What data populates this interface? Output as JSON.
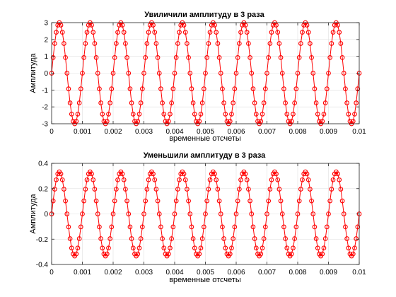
{
  "chart_data": [
    {
      "type": "line",
      "title": "Увиличили амплитуду в 3 раза",
      "xlabel": "временные отсчеты",
      "ylabel": "Амплитуда",
      "xlim": [
        0,
        0.01
      ],
      "ylim": [
        -3,
        3
      ],
      "x_ticks": [
        0,
        0.001,
        0.002,
        0.003,
        0.004,
        0.005,
        0.006,
        0.007,
        0.008,
        0.009,
        0.01
      ],
      "x_tick_labels": [
        "0",
        "0.001",
        "0.002",
        "0.003",
        "0.004",
        "0.005",
        "0.006",
        "0.007",
        "0.008",
        "0.009",
        "0.01"
      ],
      "y_ticks": [
        -3,
        -2,
        -1,
        0,
        1,
        2,
        3
      ],
      "y_tick_labels": [
        "-3",
        "-2",
        "-1",
        "0",
        "1",
        "2",
        "3"
      ],
      "grid": true,
      "series": [
        {
          "color": "#ff0000",
          "marker": "circle",
          "function": "sine",
          "amplitude": 3,
          "frequency_hz": 1000,
          "sample_rate_hz": 20000,
          "x_start": 0,
          "x_end": 0.01
        }
      ]
    },
    {
      "type": "line",
      "title": "Уменьшили амплитуду в 3 раза",
      "xlabel": "временные отсчеты",
      "ylabel": "Амплитуда",
      "xlim": [
        0,
        0.01
      ],
      "ylim": [
        -0.4,
        0.4
      ],
      "x_ticks": [
        0,
        0.001,
        0.002,
        0.003,
        0.004,
        0.005,
        0.006,
        0.007,
        0.008,
        0.009,
        0.01
      ],
      "x_tick_labels": [
        "0",
        "0.001",
        "0.002",
        "0.003",
        "0.004",
        "0.005",
        "0.006",
        "0.007",
        "0.008",
        "0.009",
        "0.01"
      ],
      "y_ticks": [
        -0.4,
        -0.2,
        0,
        0.2,
        0.4
      ],
      "y_tick_labels": [
        "-0.4",
        "-0.2",
        "0",
        "0.2",
        "0.4"
      ],
      "grid": true,
      "series": [
        {
          "color": "#ff0000",
          "marker": "circle",
          "function": "sine",
          "amplitude": 0.3333,
          "frequency_hz": 1000,
          "sample_rate_hz": 20000,
          "x_start": 0,
          "x_end": 0.01
        }
      ]
    }
  ]
}
